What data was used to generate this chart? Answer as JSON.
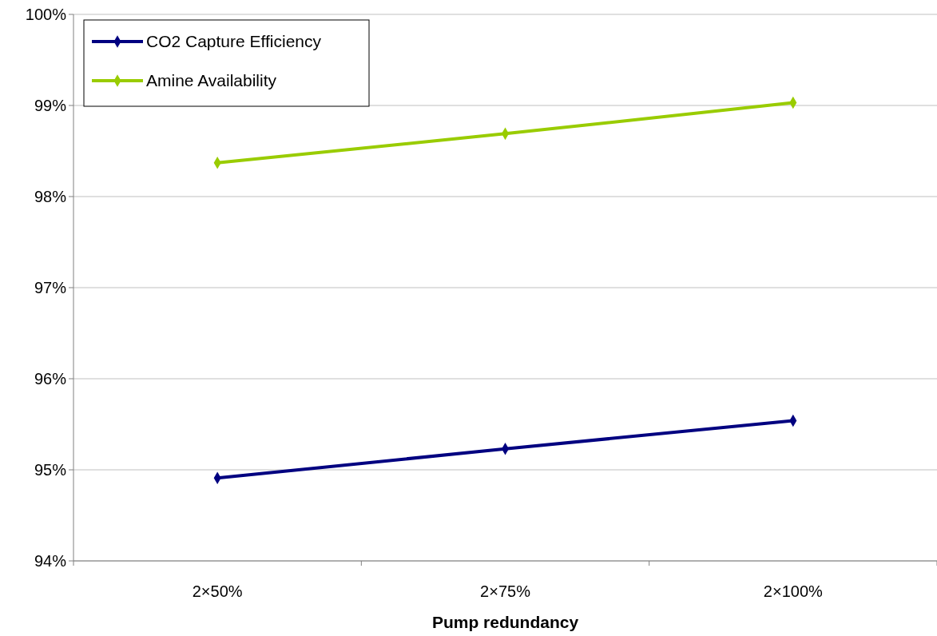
{
  "chart_data": {
    "type": "line",
    "xlabel": "Pump redundancy",
    "categories": [
      "2×50%",
      "2×75%",
      "2×100%"
    ],
    "series": [
      {
        "name": "CO2 Capture Efficiency",
        "color": "#000080",
        "values": [
          94.91,
          95.23,
          95.54
        ]
      },
      {
        "name": "Amine Availability",
        "color": "#99cc00",
        "values": [
          98.37,
          98.69,
          99.03
        ]
      }
    ],
    "ylim": [
      94,
      100
    ],
    "yticks": [
      {
        "value": 94,
        "label": "94%"
      },
      {
        "value": 95,
        "label": "95%"
      },
      {
        "value": 96,
        "label": "96%"
      },
      {
        "value": 97,
        "label": "97%"
      },
      {
        "value": 98,
        "label": "98%"
      },
      {
        "value": 99,
        "label": "99%"
      },
      {
        "value": 100,
        "label": "100%"
      }
    ],
    "grid": "y",
    "legend": "top left",
    "marker": "diamond",
    "line_style": "solid"
  }
}
